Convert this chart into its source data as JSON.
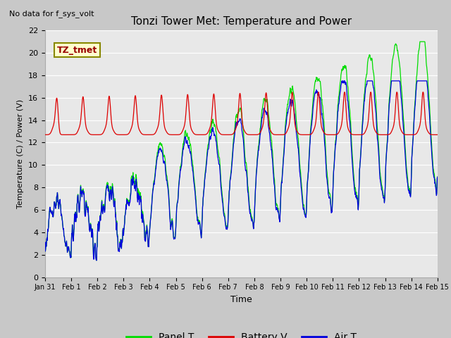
{
  "title": "Tonzi Tower Met: Temperature and Power",
  "xlabel": "Time",
  "ylabel": "Temperature (C) / Power (V)",
  "top_left_note": "No data for f_sys_volt",
  "legend_label": "TZ_tmet",
  "ylim": [
    0,
    22
  ],
  "yticks": [
    0,
    2,
    4,
    6,
    8,
    10,
    12,
    14,
    16,
    18,
    20,
    22
  ],
  "xtick_labels": [
    "Jan 31",
    "Feb 1",
    "Feb 2",
    "Feb 3",
    "Feb 4",
    "Feb 5",
    "Feb 6",
    "Feb 7",
    "Feb 8",
    "Feb 9",
    "Feb 10",
    "Feb 11",
    "Feb 12",
    "Feb 13",
    "Feb 14",
    "Feb 15"
  ],
  "fig_bg_color": "#c8c8c8",
  "plot_bg_color": "#e8e8e8",
  "grid_color": "#ffffff",
  "green_color": "#00dd00",
  "red_color": "#dd0000",
  "blue_color": "#0000dd",
  "legend_items": [
    "Panel T",
    "Battery V",
    "Air T"
  ],
  "legend_colors": [
    "#00dd00",
    "#dd0000",
    "#0000dd"
  ]
}
